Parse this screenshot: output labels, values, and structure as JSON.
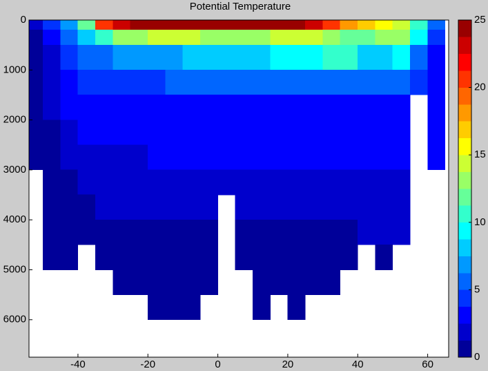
{
  "chart_data": {
    "type": "heatmap",
    "title": "Potential Temperature",
    "x_edges": [
      -55,
      -50,
      -45,
      -40,
      -35,
      -30,
      -25,
      -20,
      -15,
      -10,
      -5,
      0,
      5,
      10,
      15,
      20,
      25,
      30,
      35,
      40,
      45,
      50,
      55,
      60,
      65
    ],
    "y_edges": [
      0,
      200,
      500,
      1000,
      1500,
      2000,
      2500,
      3000,
      3500,
      4000,
      4500,
      5000,
      5500,
      6000
    ],
    "z": [
      [
        2,
        4,
        7,
        12,
        20,
        23,
        25,
        25,
        25,
        25,
        25,
        25,
        25,
        25,
        25,
        25,
        23,
        21,
        18,
        17,
        15,
        14,
        10,
        5
      ],
      [
        1,
        3,
        5,
        8,
        11,
        13,
        13,
        14,
        14,
        14,
        13,
        13,
        13,
        13,
        14,
        14,
        14,
        13,
        12,
        12,
        13,
        13,
        9,
        4
      ],
      [
        1,
        2,
        4,
        5,
        6,
        7,
        7,
        7,
        7,
        8,
        8,
        8,
        8,
        8,
        9,
        9,
        9,
        10,
        10,
        8,
        8,
        9,
        6,
        3
      ],
      [
        1,
        2,
        3,
        4,
        4,
        4,
        4,
        4,
        5,
        5,
        5,
        5,
        5,
        5,
        5,
        5,
        5,
        6,
        6,
        5,
        5,
        5,
        4,
        3
      ],
      [
        1,
        1.5,
        2.5,
        3,
        3,
        3,
        3,
        3,
        3,
        3,
        3,
        3,
        3.5,
        3.5,
        3.5,
        3.5,
        3.5,
        3.5,
        3.5,
        3.5,
        3.5,
        3.5,
        null,
        3
      ],
      [
        1,
        1,
        2,
        2.5,
        3,
        3,
        3,
        3,
        3,
        3,
        3,
        3,
        3,
        3,
        3,
        3,
        3,
        3,
        3,
        3,
        3,
        3,
        null,
        2.5
      ],
      [
        1,
        1,
        1.5,
        2,
        2,
        2,
        2,
        2.5,
        2.5,
        2.5,
        2.5,
        2.5,
        2.5,
        2.5,
        2.5,
        2.5,
        2.5,
        2.5,
        2.5,
        2.5,
        2.5,
        2.5,
        null,
        2.5
      ],
      [
        null,
        1,
        1,
        1.5,
        1.5,
        2,
        2,
        2,
        2,
        2,
        2,
        2,
        2,
        2,
        2,
        2,
        2,
        2,
        2,
        2,
        2,
        2,
        null,
        null
      ],
      [
        null,
        1,
        1,
        1,
        1.5,
        1.5,
        1.5,
        1.5,
        1.5,
        1.5,
        1.5,
        null,
        1.5,
        1.5,
        1.5,
        1.5,
        1.5,
        1.5,
        1.5,
        1.5,
        1.5,
        1.5,
        null,
        null
      ],
      [
        null,
        1,
        1,
        1,
        1,
        1,
        1,
        1,
        1,
        1,
        1,
        null,
        1,
        1,
        1,
        1,
        1,
        1,
        1,
        1.5,
        1.5,
        1.5,
        null,
        null
      ],
      [
        null,
        1,
        1,
        null,
        1,
        1,
        1,
        1,
        1,
        1,
        1,
        null,
        1,
        1,
        1,
        1,
        1,
        1,
        1,
        null,
        1,
        null,
        null,
        null
      ],
      [
        null,
        null,
        null,
        null,
        null,
        1,
        1,
        1,
        1,
        1,
        1,
        null,
        null,
        1,
        1,
        1,
        1,
        1,
        null,
        null,
        null,
        null,
        null,
        null
      ],
      [
        null,
        null,
        null,
        null,
        null,
        null,
        null,
        1,
        1,
        1,
        null,
        null,
        null,
        1,
        null,
        1,
        null,
        null,
        null,
        null,
        null,
        null,
        null,
        null
      ]
    ],
    "xlim": [
      -54,
      66
    ],
    "xticks": [
      -40,
      -20,
      0,
      20,
      40,
      60
    ],
    "ylim": [
      0,
      6750
    ],
    "yticks": [
      0,
      1000,
      2000,
      3000,
      4000,
      5000,
      6000
    ],
    "y_inverted": true,
    "clim": [
      0,
      25
    ],
    "cticks": [
      0,
      5,
      10,
      15,
      20,
      25
    ],
    "levels": 20,
    "colormap": "jet"
  }
}
